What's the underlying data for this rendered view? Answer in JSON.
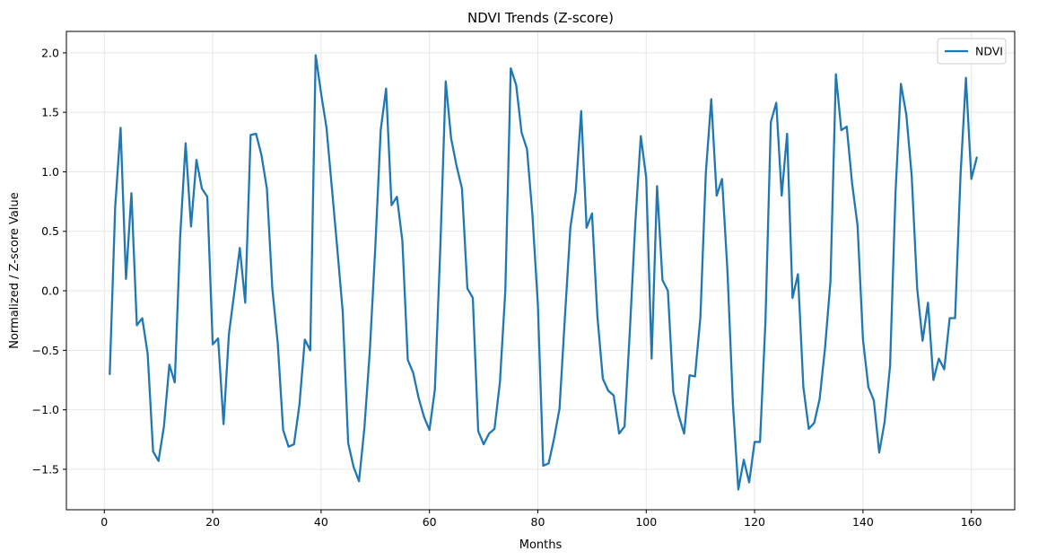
{
  "chart_data": {
    "type": "line",
    "title": "NDVI Trends (Z-score)",
    "xlabel": "Months",
    "ylabel": "Normalized / Z-score Value",
    "xlim": [
      -7,
      168
    ],
    "ylim": [
      -1.84,
      2.18
    ],
    "xticks": [
      0,
      20,
      40,
      60,
      80,
      100,
      120,
      140,
      160
    ],
    "yticks": [
      -1.5,
      -1.0,
      -0.5,
      0.0,
      0.5,
      1.0,
      1.5,
      2.0
    ],
    "xtick_labels": [
      "0",
      "20",
      "40",
      "60",
      "80",
      "100",
      "120",
      "140",
      "160"
    ],
    "ytick_labels": [
      "−1.5",
      "−1.0",
      "−0.5",
      "0.0",
      "0.5",
      "1.0",
      "1.5",
      "2.0"
    ],
    "grid": true,
    "legend_position": "top-right",
    "series": [
      {
        "name": "NDVI",
        "color": "#1f77b4",
        "x_start": 1,
        "values": [
          -0.7,
          0.7,
          1.37,
          0.1,
          0.82,
          -0.29,
          -0.23,
          -0.53,
          -1.35,
          -1.43,
          -1.14,
          -0.62,
          -0.77,
          0.46,
          1.24,
          0.54,
          1.1,
          0.86,
          0.79,
          -0.45,
          -0.4,
          -1.12,
          -0.36,
          -0.01,
          0.36,
          -0.1,
          1.31,
          1.32,
          1.14,
          0.86,
          0.02,
          -0.44,
          -1.17,
          -1.31,
          -1.29,
          -0.96,
          -0.41,
          -0.5,
          1.98,
          1.66,
          1.37,
          0.86,
          0.35,
          -0.18,
          -1.28,
          -1.48,
          -1.6,
          -1.15,
          -0.5,
          0.36,
          1.35,
          1.7,
          0.72,
          0.79,
          0.42,
          -0.58,
          -0.69,
          -0.9,
          -1.06,
          -1.17,
          -0.83,
          0.36,
          1.76,
          1.28,
          1.05,
          0.86,
          0.02,
          -0.06,
          -1.18,
          -1.29,
          -1.2,
          -1.16,
          -0.77,
          0.0,
          1.87,
          1.73,
          1.33,
          1.19,
          0.64,
          -0.11,
          -1.47,
          -1.45,
          -1.24,
          -0.99,
          -0.22,
          0.53,
          0.84,
          1.51,
          0.53,
          0.65,
          -0.22,
          -0.74,
          -0.84,
          -0.88,
          -1.2,
          -1.14,
          -0.32,
          0.58,
          1.3,
          0.95,
          -0.57,
          0.88,
          0.09,
          0.0,
          -0.85,
          -1.05,
          -1.2,
          -0.71,
          -0.72,
          -0.22,
          0.99,
          1.61,
          0.8,
          0.94,
          0.16,
          -0.95,
          -1.67,
          -1.42,
          -1.61,
          -1.27,
          -1.27,
          -0.26,
          1.42,
          1.58,
          0.8,
          1.32,
          -0.06,
          0.14,
          -0.81,
          -1.16,
          -1.11,
          -0.91,
          -0.48,
          0.08,
          1.82,
          1.35,
          1.38,
          0.9,
          0.55,
          -0.41,
          -0.81,
          -0.92,
          -1.36,
          -1.1,
          -0.63,
          0.82,
          1.74,
          1.48,
          0.96,
          0.02,
          -0.42,
          -0.1,
          -0.75,
          -0.57,
          -0.66,
          -0.23,
          -0.23,
          0.97,
          1.79,
          0.94,
          1.12
        ]
      }
    ]
  }
}
